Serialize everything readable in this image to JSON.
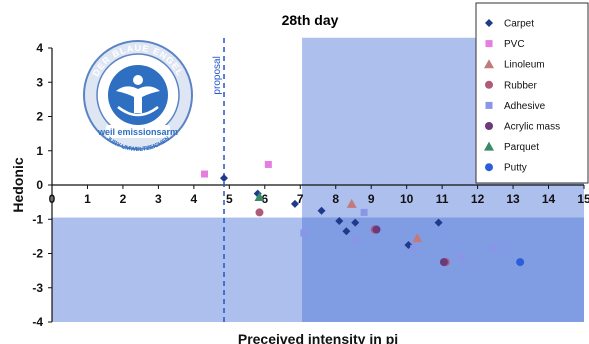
{
  "chart_data": {
    "type": "scatter",
    "title": "28th day",
    "xlabel": "Preceived intensity in pi",
    "ylabel": "Hedonic",
    "xlim": [
      0,
      15
    ],
    "ylim": [
      -4,
      4
    ],
    "x_ticks": [
      "0",
      "1",
      "2",
      "3",
      "4",
      "5",
      "6",
      "7",
      "8",
      "9",
      "10",
      "11",
      "12",
      "13",
      "14",
      "15"
    ],
    "y_ticks": [
      "4",
      "3",
      "2",
      "1",
      "0",
      "-1",
      "-2",
      "-3",
      "-4"
    ],
    "grid": false,
    "legend_position": "top-right",
    "reference_line": {
      "x": 4.85,
      "label": "proposal"
    },
    "regions": [
      {
        "x": [
          0,
          15
        ],
        "y": [
          -4,
          -0.95
        ]
      },
      {
        "x": [
          7.05,
          15
        ],
        "y": [
          -4,
          4.3
        ]
      }
    ],
    "series": [
      {
        "name": "Carpet",
        "marker": "diamond",
        "color": "#1f3a8a",
        "points": [
          [
            4.85,
            0.2
          ],
          [
            5.8,
            -0.25
          ],
          [
            6.85,
            -0.55
          ],
          [
            7.6,
            -0.75
          ],
          [
            8.1,
            -1.05
          ],
          [
            8.3,
            -1.35
          ],
          [
            8.55,
            -1.1
          ],
          [
            10.05,
            -1.75
          ],
          [
            10.9,
            -1.1
          ]
        ]
      },
      {
        "name": "PVC",
        "marker": "square",
        "color": "#e67ee0",
        "points": [
          [
            4.3,
            0.32
          ],
          [
            6.1,
            0.6
          ]
        ]
      },
      {
        "name": "Linoleum",
        "marker": "triangle",
        "color": "#c27a7a",
        "points": [
          [
            8.45,
            -0.55
          ],
          [
            10.3,
            -1.55
          ]
        ]
      },
      {
        "name": "Rubber",
        "marker": "circle",
        "color": "#b05a7a",
        "points": [
          [
            5.85,
            -0.8
          ],
          [
            9.1,
            -1.3
          ],
          [
            11.1,
            -2.25
          ]
        ]
      },
      {
        "name": "Adhesive",
        "marker": "square",
        "color": "#8b95e8",
        "points": [
          [
            7.1,
            -1.4
          ],
          [
            8.6,
            -1.6
          ],
          [
            8.8,
            -0.8
          ],
          [
            10.2,
            -1.85
          ],
          [
            11.55,
            -2.1
          ],
          [
            12.45,
            -1.85
          ]
        ]
      },
      {
        "name": "Acrylic mass",
        "marker": "circle",
        "color": "#6b3a7a",
        "points": [
          [
            9.15,
            -1.3
          ],
          [
            11.05,
            -2.25
          ]
        ]
      },
      {
        "name": "Parquet",
        "marker": "triangle",
        "color": "#3a8a6a",
        "points": [
          [
            5.85,
            -0.35
          ]
        ]
      },
      {
        "name": "Putty",
        "marker": "circle",
        "color": "#2b5fd9",
        "points": [
          [
            13.2,
            -2.25
          ]
        ]
      }
    ]
  },
  "logo": {
    "top_text": "DER BLAUE ENGEL",
    "center_text": "weil emissionsarm",
    "bottom_text": "JURY UMWELTZEICHEN"
  }
}
